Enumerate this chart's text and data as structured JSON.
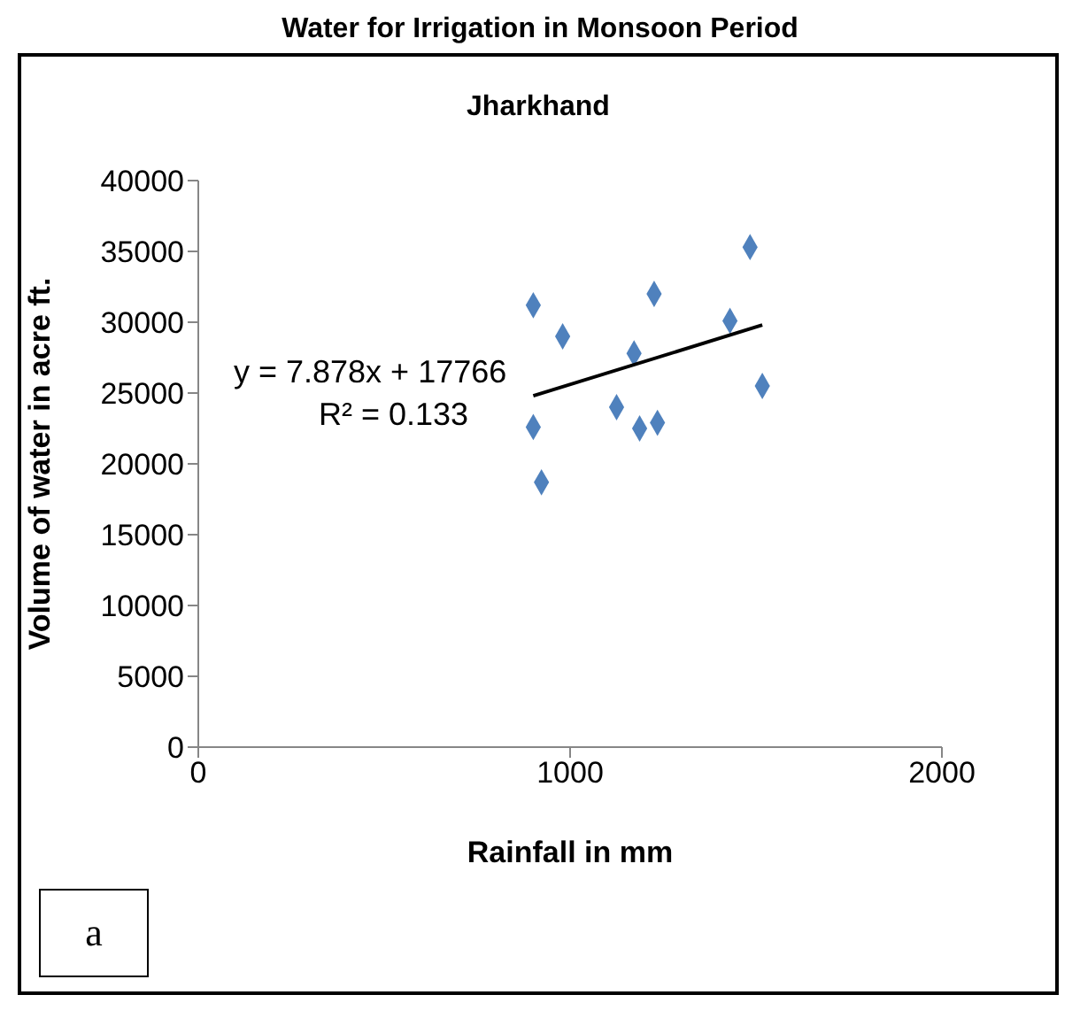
{
  "chart_data": {
    "type": "scatter",
    "title": "Water for Irrigation in Monsoon Period",
    "subtitle": "Jharkhand",
    "xlabel": "Rainfall in mm",
    "ylabel": "Volume of water in acre ft.",
    "annotations": [
      "y = 7.878x + 17766",
      "R² = 0.133",
      "a"
    ],
    "series": [
      {
        "marker": "diamond",
        "color": "#4f81bd",
        "x": [
          1484,
          901,
          1226,
          980,
          1430,
          1172,
          1517,
          1125,
          1187,
          1235,
          901,
          923
        ],
        "values": [
          35300,
          31200,
          32000,
          29000,
          30100,
          27800,
          25500,
          24000,
          22500,
          22900,
          22600,
          18700
        ]
      },
      {
        "type": "line",
        "marker": "none",
        "color": "#000000",
        "x": [
          901,
          1517
        ],
        "values": [
          24800,
          29800
        ]
      }
    ],
    "xlim": [
      0,
      2000
    ],
    "xticks": [
      0,
      1000,
      2000
    ],
    "ylim": [
      0,
      40000
    ],
    "yticks": [
      0,
      5000,
      10000,
      15000,
      20000,
      25000,
      30000,
      35000,
      40000
    ]
  }
}
